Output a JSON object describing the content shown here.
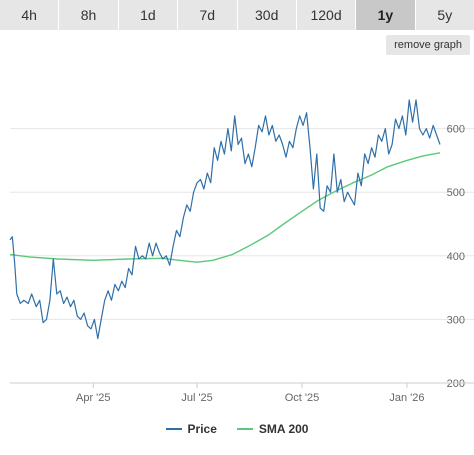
{
  "tabs": [
    {
      "label": "4h",
      "active": false
    },
    {
      "label": "8h",
      "active": false
    },
    {
      "label": "1d",
      "active": false
    },
    {
      "label": "7d",
      "active": false
    },
    {
      "label": "30d",
      "active": false
    },
    {
      "label": "120d",
      "active": false
    },
    {
      "label": "1y",
      "active": true
    },
    {
      "label": "5y",
      "active": false
    }
  ],
  "remove_graph_label": "remove graph",
  "chart_data": {
    "type": "line",
    "x_ticks": [
      "Apr '25",
      "Jul '25",
      "Oct '25",
      "Jan '26"
    ],
    "y_ticks": [
      200,
      300,
      400,
      500,
      600
    ],
    "ylim": [
      200,
      700
    ],
    "grid": true,
    "legend_position": "bottom",
    "series": [
      {
        "name": "Price",
        "color": "#2f6fa8",
        "points": [
          [
            "2025-01-18",
            425
          ],
          [
            "2025-01-20",
            430
          ],
          [
            "2025-01-22",
            390
          ],
          [
            "2025-01-24",
            340
          ],
          [
            "2025-01-27",
            325
          ],
          [
            "2025-01-30",
            330
          ],
          [
            "2025-02-03",
            325
          ],
          [
            "2025-02-06",
            340
          ],
          [
            "2025-02-10",
            320
          ],
          [
            "2025-02-13",
            330
          ],
          [
            "2025-02-16",
            295
          ],
          [
            "2025-02-19",
            300
          ],
          [
            "2025-02-22",
            330
          ],
          [
            "2025-02-25",
            395
          ],
          [
            "2025-02-28",
            340
          ],
          [
            "2025-03-03",
            345
          ],
          [
            "2025-03-06",
            325
          ],
          [
            "2025-03-09",
            335
          ],
          [
            "2025-03-12",
            320
          ],
          [
            "2025-03-15",
            330
          ],
          [
            "2025-03-18",
            305
          ],
          [
            "2025-03-21",
            300
          ],
          [
            "2025-03-24",
            310
          ],
          [
            "2025-03-27",
            290
          ],
          [
            "2025-03-30",
            285
          ],
          [
            "2025-04-02",
            300
          ],
          [
            "2025-04-05",
            270
          ],
          [
            "2025-04-08",
            300
          ],
          [
            "2025-04-11",
            330
          ],
          [
            "2025-04-14",
            345
          ],
          [
            "2025-04-17",
            330
          ],
          [
            "2025-04-20",
            355
          ],
          [
            "2025-04-23",
            345
          ],
          [
            "2025-04-26",
            360
          ],
          [
            "2025-04-29",
            350
          ],
          [
            "2025-05-02",
            380
          ],
          [
            "2025-05-05",
            370
          ],
          [
            "2025-05-08",
            415
          ],
          [
            "2025-05-11",
            395
          ],
          [
            "2025-05-14",
            400
          ],
          [
            "2025-05-17",
            395
          ],
          [
            "2025-05-20",
            420
          ],
          [
            "2025-05-23",
            400
          ],
          [
            "2025-05-26",
            420
          ],
          [
            "2025-05-29",
            405
          ],
          [
            "2025-06-01",
            395
          ],
          [
            "2025-06-04",
            400
          ],
          [
            "2025-06-07",
            385
          ],
          [
            "2025-06-10",
            415
          ],
          [
            "2025-06-13",
            440
          ],
          [
            "2025-06-16",
            430
          ],
          [
            "2025-06-19",
            460
          ],
          [
            "2025-06-22",
            480
          ],
          [
            "2025-06-25",
            470
          ],
          [
            "2025-06-28",
            500
          ],
          [
            "2025-07-01",
            515
          ],
          [
            "2025-07-04",
            520
          ],
          [
            "2025-07-07",
            505
          ],
          [
            "2025-07-10",
            530
          ],
          [
            "2025-07-13",
            515
          ],
          [
            "2025-07-16",
            570
          ],
          [
            "2025-07-19",
            550
          ],
          [
            "2025-07-22",
            580
          ],
          [
            "2025-07-25",
            560
          ],
          [
            "2025-07-28",
            600
          ],
          [
            "2025-07-31",
            565
          ],
          [
            "2025-08-03",
            620
          ],
          [
            "2025-08-06",
            575
          ],
          [
            "2025-08-09",
            585
          ],
          [
            "2025-08-12",
            545
          ],
          [
            "2025-08-15",
            560
          ],
          [
            "2025-08-18",
            540
          ],
          [
            "2025-08-21",
            570
          ],
          [
            "2025-08-24",
            605
          ],
          [
            "2025-08-27",
            595
          ],
          [
            "2025-08-30",
            620
          ],
          [
            "2025-09-02",
            590
          ],
          [
            "2025-09-05",
            605
          ],
          [
            "2025-09-08",
            580
          ],
          [
            "2025-09-11",
            590
          ],
          [
            "2025-09-14",
            575
          ],
          [
            "2025-09-17",
            555
          ],
          [
            "2025-09-20",
            580
          ],
          [
            "2025-09-23",
            570
          ],
          [
            "2025-09-26",
            600
          ],
          [
            "2025-09-29",
            620
          ],
          [
            "2025-10-02",
            605
          ],
          [
            "2025-10-05",
            625
          ],
          [
            "2025-10-08",
            570
          ],
          [
            "2025-10-11",
            505
          ],
          [
            "2025-10-14",
            560
          ],
          [
            "2025-10-17",
            475
          ],
          [
            "2025-10-20",
            470
          ],
          [
            "2025-10-23",
            510
          ],
          [
            "2025-10-26",
            500
          ],
          [
            "2025-10-29",
            560
          ],
          [
            "2025-11-01",
            500
          ],
          [
            "2025-11-04",
            520
          ],
          [
            "2025-11-07",
            485
          ],
          [
            "2025-11-10",
            500
          ],
          [
            "2025-11-13",
            490
          ],
          [
            "2025-11-16",
            480
          ],
          [
            "2025-11-19",
            530
          ],
          [
            "2025-11-22",
            510
          ],
          [
            "2025-11-25",
            560
          ],
          [
            "2025-11-28",
            545
          ],
          [
            "2025-12-01",
            570
          ],
          [
            "2025-12-04",
            555
          ],
          [
            "2025-12-07",
            590
          ],
          [
            "2025-12-10",
            580
          ],
          [
            "2025-12-13",
            600
          ],
          [
            "2025-12-16",
            560
          ],
          [
            "2025-12-19",
            575
          ],
          [
            "2025-12-22",
            615
          ],
          [
            "2025-12-25",
            600
          ],
          [
            "2025-12-28",
            620
          ],
          [
            "2025-12-31",
            590
          ],
          [
            "2026-01-03",
            645
          ],
          [
            "2026-01-06",
            610
          ],
          [
            "2026-01-09",
            645
          ],
          [
            "2026-01-12",
            600
          ],
          [
            "2026-01-15",
            590
          ],
          [
            "2026-01-18",
            600
          ],
          [
            "2026-01-21",
            585
          ],
          [
            "2026-01-24",
            605
          ],
          [
            "2026-01-27",
            590
          ],
          [
            "2026-01-30",
            575
          ]
        ]
      },
      {
        "name": "SMA 200",
        "color": "#5cc97a",
        "points": [
          [
            "2025-01-18",
            402
          ],
          [
            "2025-02-05",
            398
          ],
          [
            "2025-03-01",
            395
          ],
          [
            "2025-04-01",
            393
          ],
          [
            "2025-05-01",
            395
          ],
          [
            "2025-06-01",
            396
          ],
          [
            "2025-06-20",
            392
          ],
          [
            "2025-07-01",
            390
          ],
          [
            "2025-07-15",
            393
          ],
          [
            "2025-08-01",
            402
          ],
          [
            "2025-08-15",
            415
          ],
          [
            "2025-09-01",
            432
          ],
          [
            "2025-09-15",
            450
          ],
          [
            "2025-10-01",
            470
          ],
          [
            "2025-10-15",
            487
          ],
          [
            "2025-11-01",
            503
          ],
          [
            "2025-11-15",
            515
          ],
          [
            "2025-12-01",
            527
          ],
          [
            "2025-12-15",
            540
          ],
          [
            "2026-01-01",
            550
          ],
          [
            "2026-01-15",
            557
          ],
          [
            "2026-01-30",
            562
          ]
        ]
      }
    ]
  }
}
